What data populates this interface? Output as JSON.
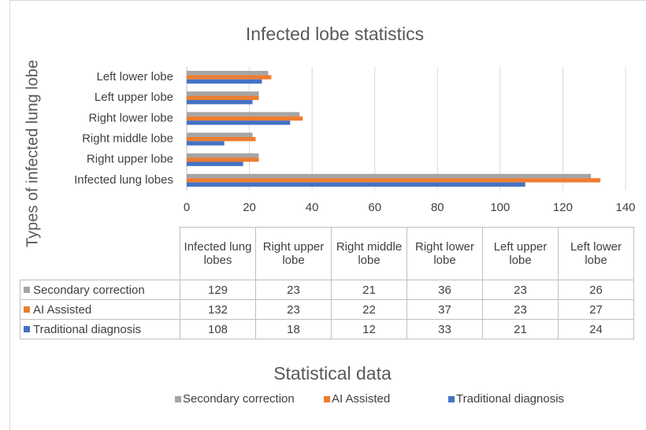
{
  "chart_data": {
    "type": "bar",
    "orientation": "horizontal",
    "title": "Infected lobe statistics",
    "y_label": "Types of infected lung lobe",
    "x_label": "Statistical data",
    "categories": [
      "Infected lung lobes",
      "Right upper lobe",
      "Right middle lobe",
      "Right lower lobe",
      "Left upper lobe",
      "Left lower lobe"
    ],
    "series": [
      {
        "name": "Secondary correction",
        "color": "#a5a5a5",
        "values": [
          129,
          23,
          21,
          36,
          23,
          26
        ]
      },
      {
        "name": "AI Assisted",
        "color": "#ed7d31",
        "values": [
          132,
          23,
          22,
          37,
          23,
          27
        ]
      },
      {
        "name": "Traditional diagnosis",
        "color": "#4472c4",
        "values": [
          108,
          18,
          12,
          33,
          21,
          24
        ]
      }
    ],
    "xlim": [
      0,
      140
    ],
    "xticks": [
      0,
      20,
      40,
      60,
      80,
      100,
      120,
      140
    ],
    "grid": true,
    "data_table": true,
    "legend": "bottom"
  }
}
